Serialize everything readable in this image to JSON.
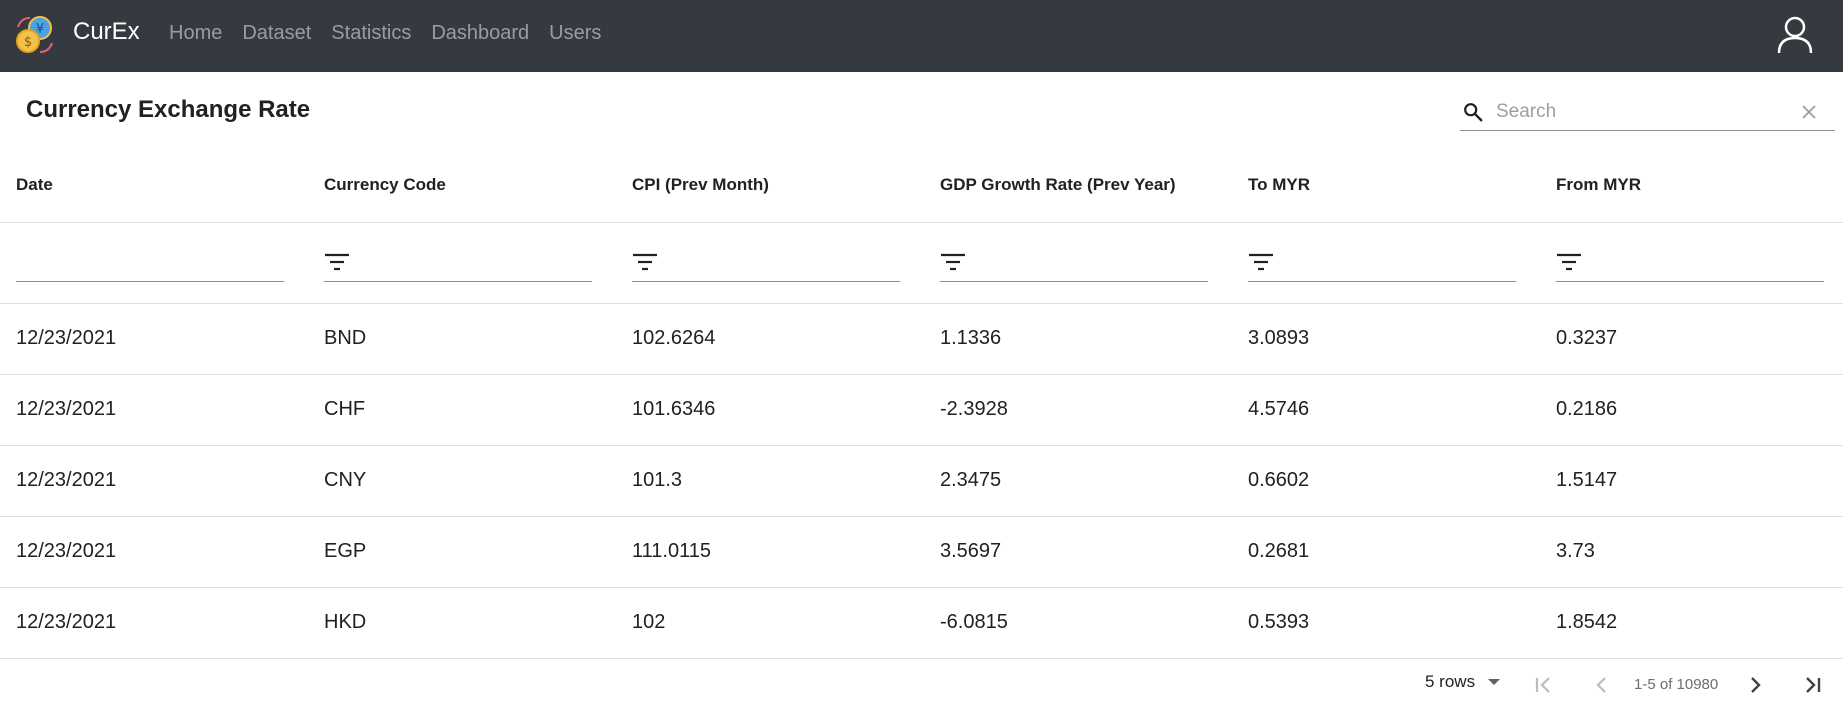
{
  "app": {
    "brand": "CurEx",
    "nav": [
      "Home",
      "Dataset",
      "Statistics",
      "Dashboard",
      "Users"
    ]
  },
  "page": {
    "title": "Currency Exchange Rate",
    "search_placeholder": "Search"
  },
  "table": {
    "columns": [
      "Date",
      "Currency Code",
      "CPI (Prev Month)",
      "GDP Growth Rate (Prev Year)",
      "To MYR",
      "From MYR"
    ],
    "rows": [
      [
        "12/23/2021",
        "BND",
        "102.6264",
        "1.1336",
        "3.0893",
        "0.3237"
      ],
      [
        "12/23/2021",
        "CHF",
        "101.6346",
        "-2.3928",
        "4.5746",
        "0.2186"
      ],
      [
        "12/23/2021",
        "CNY",
        "101.3",
        "2.3475",
        "0.6602",
        "1.5147"
      ],
      [
        "12/23/2021",
        "EGP",
        "111.0115",
        "3.5697",
        "0.2681",
        "3.73"
      ],
      [
        "12/23/2021",
        "HKD",
        "102",
        "-6.0815",
        "0.5393",
        "1.8542"
      ]
    ]
  },
  "pagination": {
    "rows_per_page": "5 rows",
    "page_info": "1-5 of 10980"
  },
  "icons": {
    "logo": "currency-exchange-logo",
    "user": "user-icon",
    "search": "search-icon",
    "clear": "close-icon",
    "filter": "filter-icon",
    "first": "first-page-icon",
    "prev": "chevron-left-icon",
    "next": "chevron-right-icon",
    "last": "last-page-icon"
  }
}
